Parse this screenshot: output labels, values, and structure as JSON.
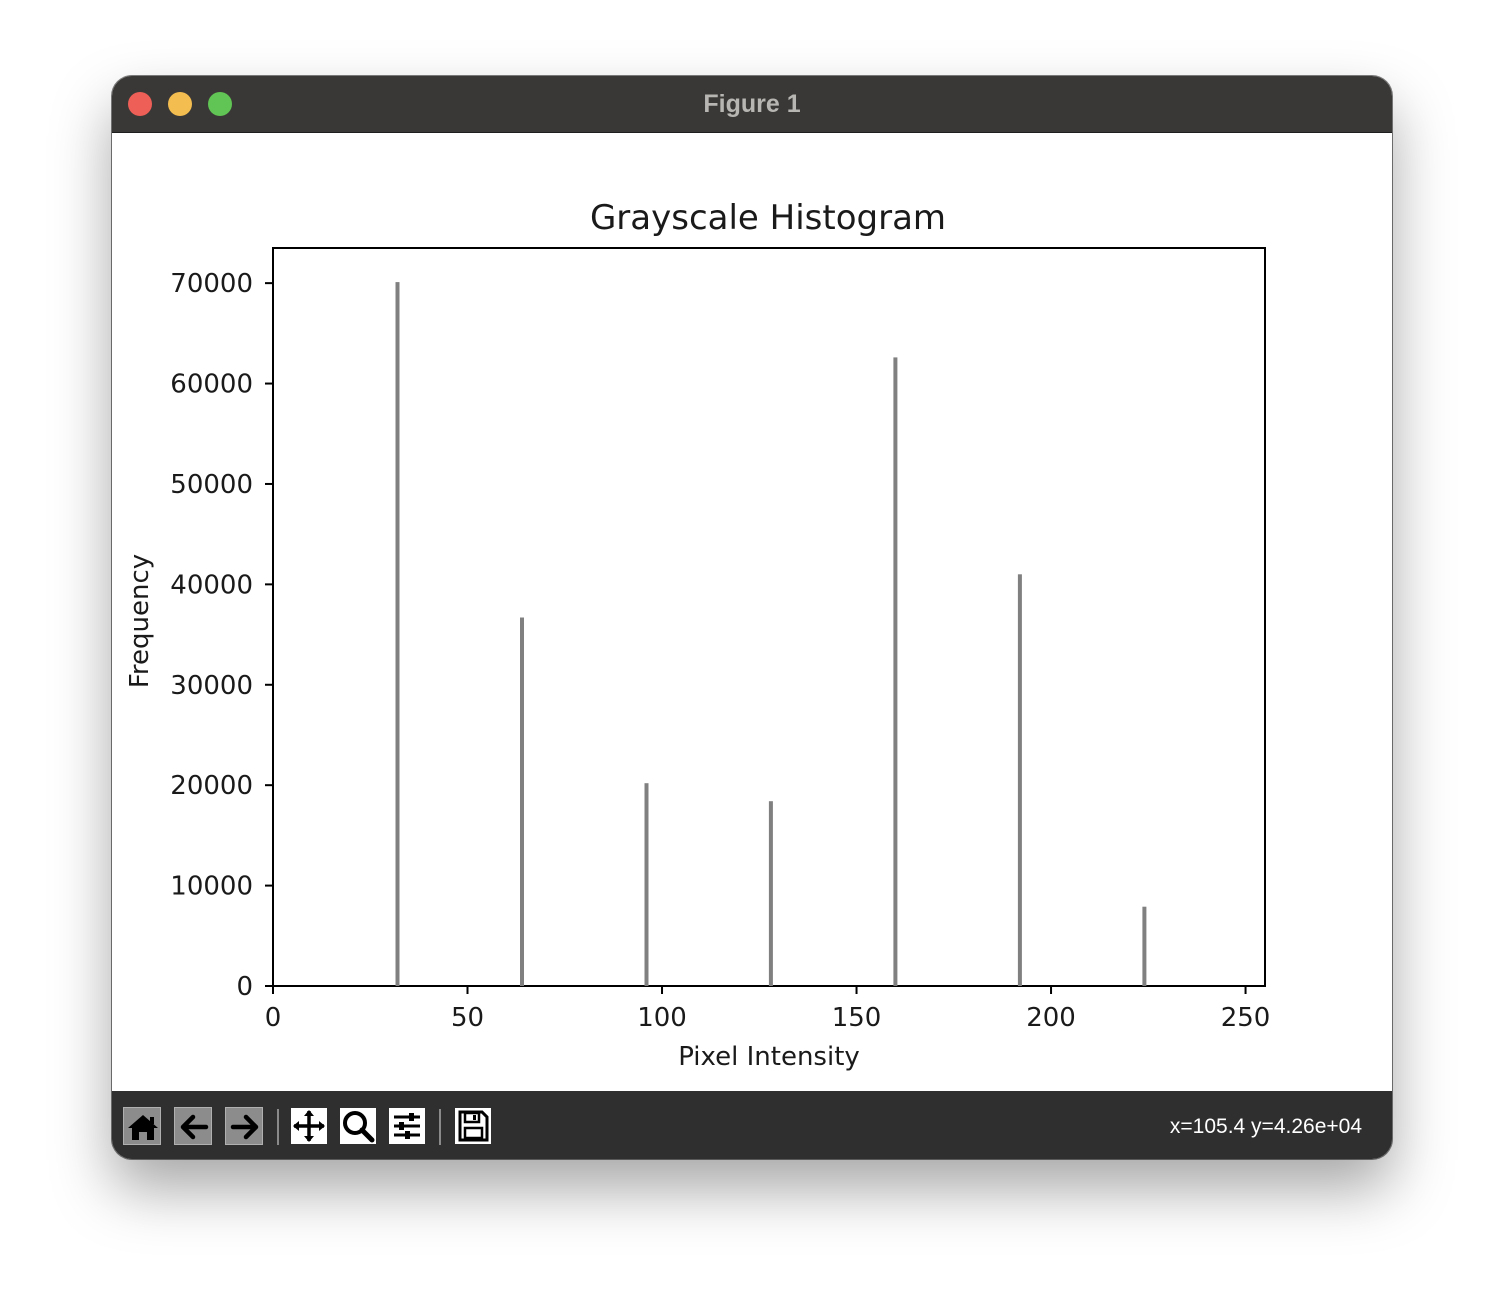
{
  "window": {
    "title": "Figure 1",
    "traffic_colors": {
      "close": "#ee5f57",
      "minimize": "#f4bd4f",
      "maximize": "#60c554"
    }
  },
  "toolbar": {
    "buttons": [
      "home-icon",
      "back-arrow-icon",
      "forward-arrow-icon",
      "pan-move-icon",
      "zoom-magnifier-icon",
      "configure-subplots-icon",
      "save-floppy-icon"
    ],
    "coordinates": "x=105.4 y=4.26e+04"
  },
  "chart_data": {
    "type": "bar",
    "title": "Grayscale Histogram",
    "xlabel": "Pixel Intensity",
    "ylabel": "Frequency",
    "xlim": [
      0,
      255
    ],
    "ylim": [
      0,
      73500
    ],
    "xticks": [
      0,
      50,
      100,
      150,
      200,
      250
    ],
    "yticks": [
      0,
      10000,
      20000,
      30000,
      40000,
      50000,
      60000,
      70000
    ],
    "bar_color": "#808080",
    "x": [
      32,
      64,
      96,
      128,
      160,
      192,
      224
    ],
    "values": [
      70100,
      36700,
      20200,
      18400,
      62600,
      41000,
      7900
    ],
    "grid": false,
    "legend": "none"
  }
}
